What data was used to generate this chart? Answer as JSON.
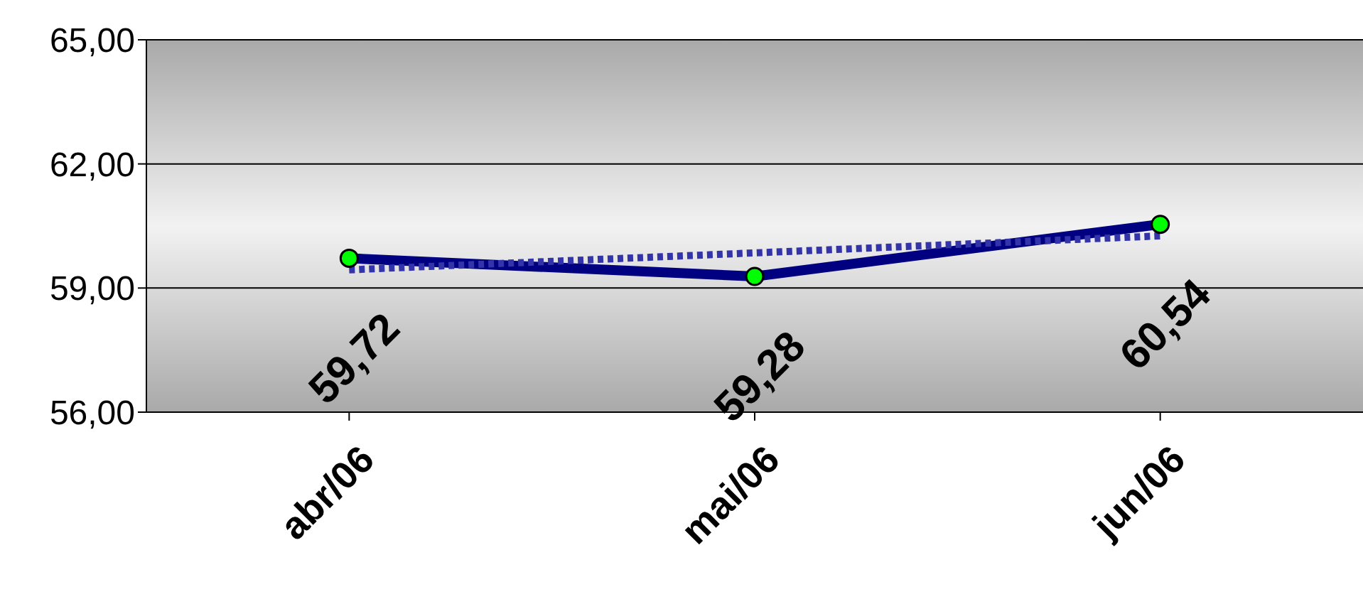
{
  "chart_data": {
    "type": "line",
    "categories": [
      "abr/06",
      "mai/06",
      "jun/06"
    ],
    "series": [
      {
        "color": "#000080",
        "values": [
          59.72,
          59.28,
          60.54
        ],
        "marker": "circle",
        "line_style": "solid",
        "value_labels": [
          "59,72",
          "59,28",
          "60,54"
        ]
      },
      {
        "color": "#3333aa",
        "values": [
          59.44,
          59.85,
          60.26
        ],
        "marker": "none",
        "line_style": "dotted"
      }
    ],
    "ylim": [
      56,
      65
    ],
    "yticks": [
      {
        "value": 56,
        "label": "56,00"
      },
      {
        "value": 59,
        "label": "59,00"
      },
      {
        "value": 62,
        "label": "62,00"
      },
      {
        "value": 65,
        "label": "65,00"
      }
    ],
    "grid": "y"
  }
}
